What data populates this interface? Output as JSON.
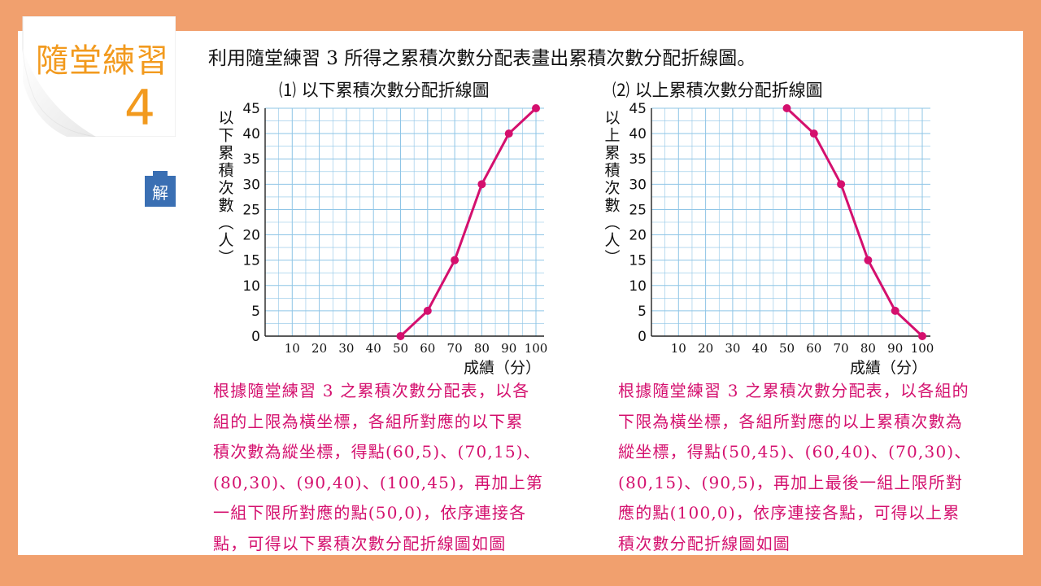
{
  "badge": {
    "title": "隨堂練習",
    "number": "4"
  },
  "solution_tag": "解",
  "question": "利用隨堂練習 3 所得之累積次數分配表畫出累積次數分配折線圖。",
  "colors": {
    "background": "#f1a06e",
    "accent": "#f29a1e",
    "line": "#d4106e",
    "grid": "#8ec5e6",
    "tag": "#3a6fb3"
  },
  "chart_data": [
    {
      "type": "line",
      "title": "⑴ 以下累積次數分配折線圖",
      "xlabel": "成績（分）",
      "ylabel": "以下累積次數（人）",
      "ylabel_chars": [
        "以",
        "下",
        "累",
        "積",
        "次",
        "數",
        "︵",
        "人",
        "︶"
      ],
      "xlim": [
        0,
        100
      ],
      "ylim": [
        0,
        45
      ],
      "x_ticks": [
        "10",
        "20",
        "30",
        "40",
        "50",
        "60",
        "70",
        "80",
        "90",
        "100"
      ],
      "y_ticks": [
        "0",
        "5",
        "10",
        "15",
        "20",
        "25",
        "30",
        "35",
        "40",
        "45"
      ],
      "grid": true,
      "series": [
        {
          "x": [
            50,
            60,
            70,
            80,
            90,
            100
          ],
          "y": [
            0,
            5,
            15,
            30,
            40,
            45
          ]
        }
      ]
    },
    {
      "type": "line",
      "title": "⑵ 以上累積次數分配折線圖",
      "xlabel": "成績（分）",
      "ylabel": "以上累積次數（人）",
      "ylabel_chars": [
        "以",
        "上",
        "累",
        "積",
        "次",
        "數",
        "︵",
        "人",
        "︶"
      ],
      "xlim": [
        0,
        100
      ],
      "ylim": [
        0,
        45
      ],
      "x_ticks": [
        "10",
        "20",
        "30",
        "40",
        "50",
        "60",
        "70",
        "80",
        "90",
        "100"
      ],
      "y_ticks": [
        "0",
        "5",
        "10",
        "15",
        "20",
        "25",
        "30",
        "35",
        "40",
        "45"
      ],
      "grid": true,
      "series": [
        {
          "x": [
            50,
            60,
            70,
            80,
            90,
            100
          ],
          "y": [
            45,
            40,
            30,
            15,
            5,
            0
          ]
        }
      ]
    }
  ],
  "explanations": [
    {
      "lines": [
        "根據隨堂練習 3 之累積次數分配表，以各",
        "組的上限為橫坐標，各組所對應的以下累",
        "積次數為縱坐標，得點(60,5)、(70,15)、",
        "(80,30)、(90,40)、(100,45)，再加上第",
        "一組下限所對應的點(50,0)，依序連接各",
        "點，可得以下累積次數分配折線圖如圖"
      ]
    },
    {
      "lines": [
        "根據隨堂練習 3 之累積次數分配表，以各組的",
        "下限為橫坐標，各組所對應的以上累積次數為",
        "縱坐標，得點(50,45)、(60,40)、(70,30)、",
        "(80,15)、(90,5)，再加上最後一組上限所對",
        "應的點(100,0)，依序連接各點，可得以上累",
        "積次數分配折線圖如圖"
      ]
    }
  ]
}
